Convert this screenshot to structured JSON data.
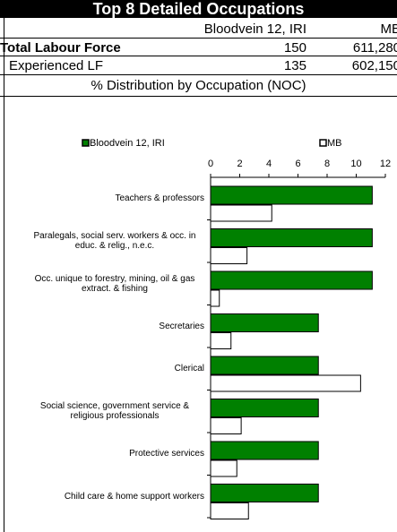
{
  "header": {
    "title": "Top 8 Detailed Occupations",
    "columns": [
      "Bloodvein 12, IRI",
      "MB"
    ],
    "section": "% Distribution by Occupation (NOC)"
  },
  "table": {
    "rows": [
      [
        "Total Labour Force",
        "150",
        "611,280"
      ],
      [
        "Experienced LF",
        "135",
        "602,150"
      ]
    ]
  },
  "chart_data": {
    "type": "hbar",
    "categories": [
      "Teachers & professors",
      "Paralegals, social serv. workers & occ. in educ. & relig., n.e.c.",
      "Occ. unique to forestry, mining, oil & gas extract. & fishing",
      "Secretaries",
      "Clerical",
      "Social science, government service & religious professionals",
      "Protective services",
      "Child care & home support workers"
    ],
    "series": [
      {
        "name": "Bloodvein 12, IRI",
        "color": "#008000",
        "values": [
          11.1,
          11.1,
          11.1,
          7.4,
          7.4,
          7.4,
          7.4,
          7.4
        ]
      },
      {
        "name": "MB",
        "color": "#ffffff",
        "values": [
          4.2,
          2.5,
          0.6,
          1.4,
          10.3,
          2.1,
          1.8,
          2.6
        ]
      }
    ],
    "xlim": [
      0,
      12
    ],
    "xticks": [
      0,
      2,
      4,
      6,
      8,
      10,
      12
    ]
  }
}
